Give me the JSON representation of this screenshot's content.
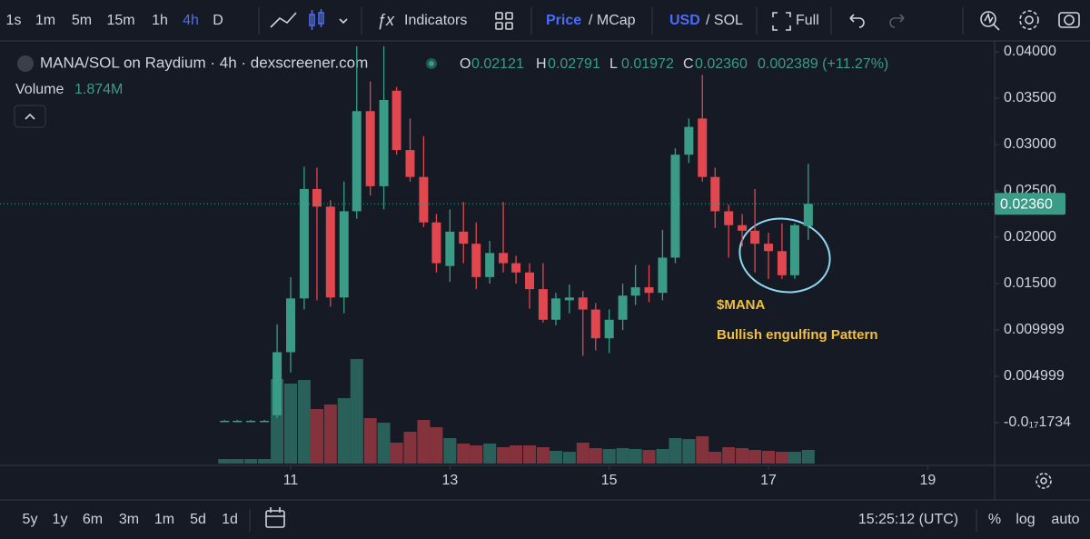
{
  "toolbar": {
    "intervals": [
      "1s",
      "1m",
      "5m",
      "15m",
      "1h",
      "4h",
      "D"
    ],
    "active_interval": 5,
    "indicators": "Indicators",
    "price": "Price",
    "mcap": "/ MCap",
    "usd": "USD",
    "sol": "/ SOL",
    "full": "Full"
  },
  "chart_data": {
    "type": "candlestick",
    "title": "MANA/SOL on Raydium · 4h · dexscreener.com",
    "volume_title": "Volume",
    "volume_label": "1.874M",
    "last_labels": {
      "open": "0.02121",
      "high": "0.02791",
      "low": "0.01972",
      "close": "0.02360",
      "change": "0.002389 (+11.27%)"
    },
    "ohlc_letters": [
      "O",
      "H",
      "L",
      "C"
    ],
    "up_color": "#3a9c86",
    "down_color": "#e0474f",
    "x": [
      10.17,
      10.33,
      10.5,
      10.67,
      10.83,
      11,
      11.17,
      11.33,
      11.5,
      11.67,
      11.83,
      12,
      12.17,
      12.33,
      12.5,
      12.67,
      12.83,
      13,
      13.17,
      13.33,
      13.5,
      13.67,
      13.83,
      14,
      14.17,
      14.33,
      14.5,
      14.67,
      14.83,
      15,
      15.17,
      15.33,
      15.5,
      15.67,
      15.83,
      16,
      16.17,
      16.33,
      16.5,
      16.67,
      16.83,
      17,
      17.17,
      17.33,
      17.5
    ],
    "open": [
      0.0002,
      0.0002,
      0.0002,
      0.0002,
      0.0008,
      0.0076,
      0.0134,
      0.0252,
      0.0233,
      0.0135,
      0.0228,
      0.0336,
      0.0255,
      0.0358,
      0.0294,
      0.0265,
      0.0216,
      0.0169,
      0.0206,
      0.0193,
      0.0157,
      0.0183,
      0.0172,
      0.0162,
      0.0144,
      0.0111,
      0.0132,
      0.0135,
      0.0122,
      0.0091,
      0.0111,
      0.0137,
      0.0146,
      0.014,
      0.0178,
      0.0289,
      0.0328,
      0.0265,
      0.0228,
      0.0213,
      0.0207,
      0.0193,
      0.0185,
      0.0159,
      0.02121
    ],
    "high": [
      0.0003,
      0.0003,
      0.0003,
      0.0003,
      0.0106,
      0.0157,
      0.0276,
      0.0275,
      0.024,
      0.026,
      0.0406,
      0.0368,
      0.0406,
      0.0362,
      0.0328,
      0.0309,
      0.0225,
      0.023,
      0.0238,
      0.0216,
      0.0196,
      0.0238,
      0.018,
      0.0172,
      0.0172,
      0.014,
      0.0149,
      0.0142,
      0.0129,
      0.0122,
      0.015,
      0.017,
      0.017,
      0.0208,
      0.0296,
      0.0328,
      0.0375,
      0.0275,
      0.0235,
      0.0225,
      0.0252,
      0.0205,
      0.0215,
      0.0215,
      0.02791
    ],
    "low": [
      0.0001,
      0.0001,
      0.0001,
      0.0001,
      0.0005,
      0.0054,
      0.0122,
      0.0132,
      0.0125,
      0.0118,
      0.022,
      0.0245,
      0.023,
      0.0289,
      0.026,
      0.0211,
      0.0162,
      0.0152,
      0.0172,
      0.0144,
      0.015,
      0.0162,
      0.015,
      0.0123,
      0.0108,
      0.0105,
      0.0118,
      0.0072,
      0.0078,
      0.0075,
      0.01,
      0.0127,
      0.013,
      0.0132,
      0.0172,
      0.028,
      0.026,
      0.021,
      0.0178,
      0.019,
      0.0162,
      0.0155,
      0.0155,
      0.0155,
      0.01972
    ],
    "close": [
      0.0002,
      0.0002,
      0.0002,
      0.0002,
      0.0076,
      0.0134,
      0.0252,
      0.0233,
      0.0135,
      0.0228,
      0.0336,
      0.0255,
      0.0348,
      0.0294,
      0.0265,
      0.0216,
      0.0172,
      0.0206,
      0.0193,
      0.0157,
      0.0183,
      0.0172,
      0.0162,
      0.0144,
      0.0111,
      0.0134,
      0.0135,
      0.0122,
      0.0091,
      0.0111,
      0.0137,
      0.0146,
      0.014,
      0.0178,
      0.0289,
      0.0319,
      0.0265,
      0.0228,
      0.0213,
      0.0207,
      0.0193,
      0.0185,
      0.0159,
      0.0213,
      0.0236
    ],
    "volume": [
      0.62,
      0.62,
      0.62,
      0.62,
      11.62,
      10.99,
      11.49,
      7.5,
      8.12,
      8.99,
      14.37,
      6.25,
      5.62,
      2.87,
      4.37,
      6,
      5,
      3.5,
      2.75,
      2.5,
      2.75,
      2.25,
      2.5,
      2.5,
      2.25,
      1.75,
      1.62,
      2.87,
      2.12,
      2,
      2.12,
      2,
      1.87,
      2,
      3.5,
      3.37,
      3.75,
      1.62,
      2.25,
      2.12,
      1.87,
      1.75,
      1.62,
      1.62,
      1.874
    ],
    "xlim": [
      7.35,
      19.84
    ],
    "xticks": [
      11,
      13,
      15,
      17,
      19
    ],
    "ylim": [
      -0.00441,
      0.04127
    ],
    "yticks": [
      {
        "value": 0.04,
        "label": "0.04000"
      },
      {
        "value": 0.035,
        "label": "0.03500"
      },
      {
        "value": 0.03,
        "label": "0.03000"
      },
      {
        "value": 0.025,
        "label": "0.02500"
      },
      {
        "value": 0.02,
        "label": "0.02000"
      },
      {
        "value": 0.015,
        "label": "0.01500"
      },
      0.009999,
      0.004999,
      {
        "value": -1.734e-18,
        "label": "-0.0₁₇1734"
      }
    ],
    "last_price": 0.0236,
    "annotations": [
      "$MANA",
      "Bullish engulfing Pattern"
    ]
  },
  "bottom_bar": {
    "ranges": [
      "5y",
      "1y",
      "6m",
      "3m",
      "1m",
      "5d",
      "1d"
    ],
    "time": "15:25:12 (UTC)",
    "percent": "%",
    "log": "log",
    "auto": "auto"
  }
}
